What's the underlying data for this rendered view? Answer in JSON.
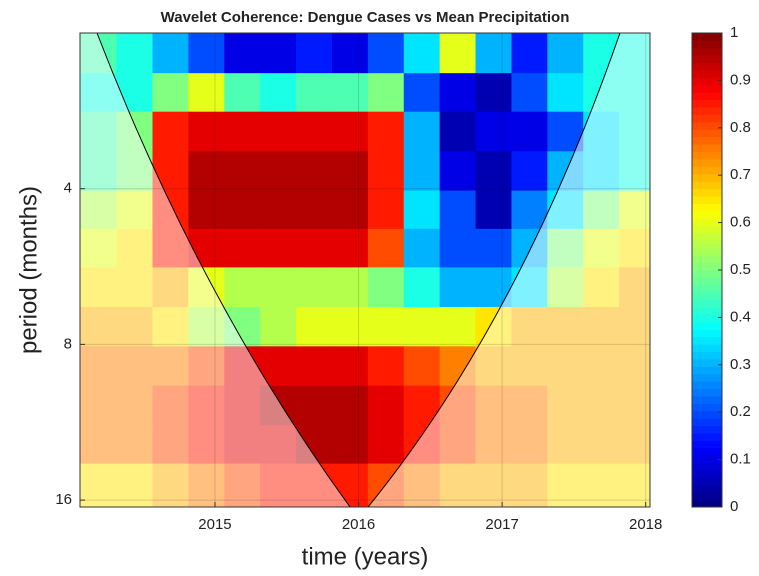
{
  "chart_data": {
    "type": "heatmap",
    "title": "Wavelet Coherence: Dengue Cases vs Mean Precipitation",
    "x_label": "time (years)",
    "y_label": "period (months)",
    "xlim": [
      2014.06,
      2018.03
    ],
    "xticks": [
      2015,
      2016,
      2017,
      2018
    ],
    "ylim": [
      2,
      16.5
    ],
    "yticks": [
      4,
      8,
      16
    ],
    "yscale": "log",
    "clim": [
      0,
      1
    ],
    "cticks": [
      0,
      0.1,
      0.2,
      0.3,
      0.4,
      0.5,
      0.6,
      0.7,
      0.8,
      0.9,
      1
    ],
    "colormap": "jet",
    "x": [
      2014.19,
      2014.44,
      2014.69,
      2014.94,
      2015.19,
      2015.44,
      2015.69,
      2015.94,
      2016.19,
      2016.44,
      2016.69,
      2016.94,
      2017.19,
      2017.44,
      2017.69,
      2017.94
    ],
    "y": [
      2.2,
      2.6,
      3.1,
      3.7,
      4.4,
      5.2,
      6.2,
      7.4,
      8.8,
      10.5,
      12.5,
      14.8
    ],
    "z": [
      [
        0.45,
        0.4,
        0.3,
        0.2,
        0.1,
        0.1,
        0.15,
        0.1,
        0.2,
        0.35,
        0.6,
        0.3,
        0.15,
        0.3,
        0.4,
        0.4
      ],
      [
        0.4,
        0.4,
        0.5,
        0.6,
        0.45,
        0.4,
        0.45,
        0.45,
        0.5,
        0.2,
        0.1,
        0.05,
        0.2,
        0.35,
        0.4,
        0.4
      ],
      [
        0.45,
        0.5,
        0.85,
        0.9,
        0.9,
        0.9,
        0.9,
        0.9,
        0.85,
        0.3,
        0.05,
        0.1,
        0.1,
        0.2,
        0.35,
        0.4
      ],
      [
        0.45,
        0.5,
        0.85,
        0.95,
        0.95,
        0.95,
        0.95,
        0.95,
        0.85,
        0.3,
        0.1,
        0.05,
        0.15,
        0.3,
        0.35,
        0.4
      ],
      [
        0.55,
        0.6,
        0.85,
        0.95,
        0.95,
        0.95,
        0.95,
        0.95,
        0.85,
        0.35,
        0.2,
        0.05,
        0.25,
        0.35,
        0.5,
        0.6
      ],
      [
        0.6,
        0.65,
        0.85,
        0.9,
        0.9,
        0.9,
        0.9,
        0.9,
        0.8,
        0.3,
        0.2,
        0.2,
        0.3,
        0.5,
        0.6,
        0.65
      ],
      [
        0.65,
        0.65,
        0.7,
        0.6,
        0.55,
        0.55,
        0.55,
        0.55,
        0.5,
        0.4,
        0.3,
        0.3,
        0.35,
        0.55,
        0.65,
        0.7
      ],
      [
        0.7,
        0.7,
        0.65,
        0.55,
        0.5,
        0.55,
        0.6,
        0.6,
        0.6,
        0.6,
        0.6,
        0.65,
        0.7,
        0.7,
        0.7,
        0.7
      ],
      [
        0.75,
        0.75,
        0.75,
        0.8,
        0.9,
        0.9,
        0.9,
        0.9,
        0.85,
        0.8,
        0.75,
        0.7,
        0.7,
        0.7,
        0.7,
        0.7
      ],
      [
        0.75,
        0.75,
        0.8,
        0.85,
        0.9,
        0.95,
        0.95,
        0.95,
        0.9,
        0.85,
        0.8,
        0.75,
        0.75,
        0.7,
        0.7,
        0.7
      ],
      [
        0.75,
        0.75,
        0.8,
        0.85,
        0.9,
        0.9,
        0.95,
        0.95,
        0.9,
        0.85,
        0.8,
        0.75,
        0.75,
        0.7,
        0.7,
        0.7
      ],
      [
        0.65,
        0.65,
        0.7,
        0.75,
        0.8,
        0.85,
        0.85,
        0.85,
        0.8,
        0.75,
        0.7,
        0.7,
        0.7,
        0.65,
        0.65,
        0.65
      ]
    ]
  }
}
